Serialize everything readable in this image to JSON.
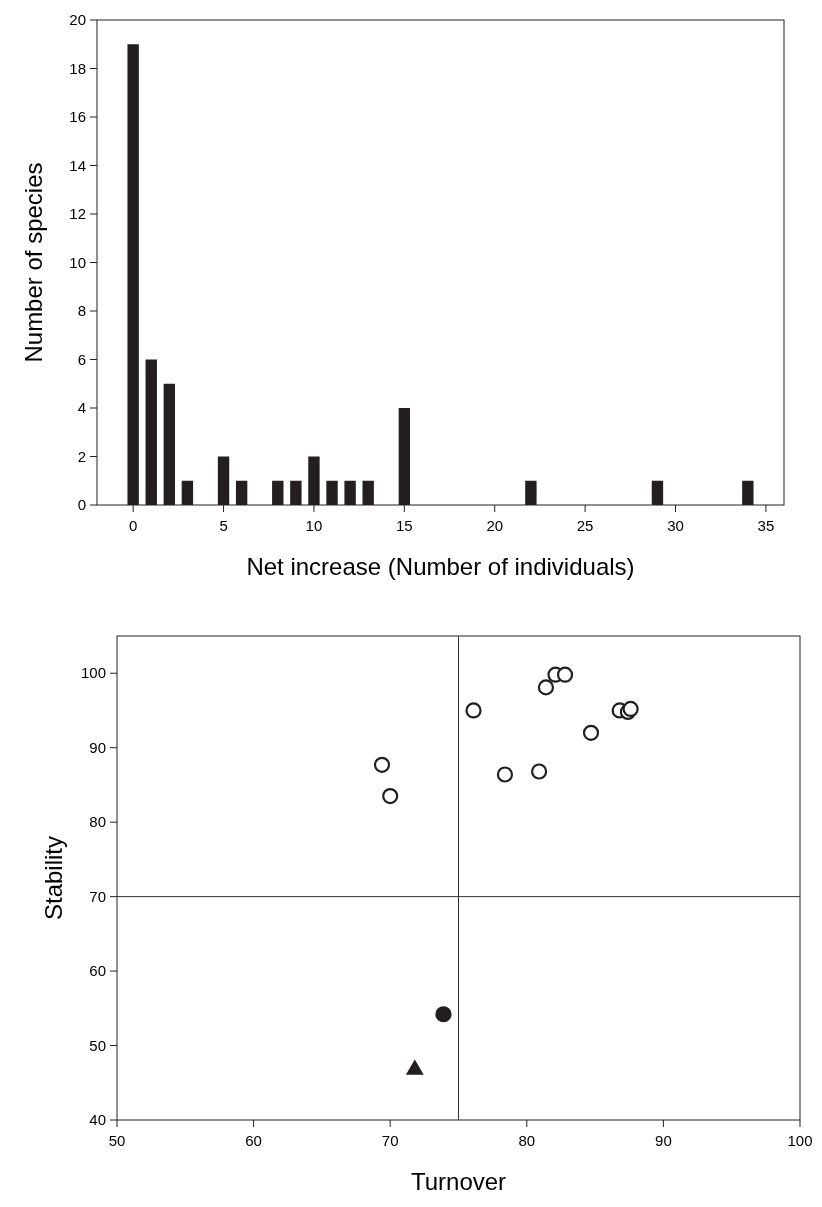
{
  "chart_data": [
    {
      "type": "bar",
      "xlabel": "Net increase (Number of individuals)",
      "ylabel": "Number of species",
      "x": [
        0,
        1,
        2,
        3,
        5,
        6,
        8,
        9,
        10,
        11,
        12,
        13,
        15,
        22,
        29,
        34
      ],
      "values": [
        19,
        6,
        5,
        1,
        2,
        1,
        1,
        1,
        2,
        1,
        1,
        1,
        4,
        1,
        1,
        1
      ],
      "color": "#231f20",
      "xlim": [
        -2,
        36
      ],
      "xticks": [
        0,
        5,
        10,
        15,
        20,
        25,
        30,
        35
      ],
      "ylim": [
        0,
        20
      ],
      "yticks": [
        0,
        2,
        4,
        6,
        8,
        10,
        12,
        14,
        16,
        18,
        20
      ],
      "grid": false
    },
    {
      "type": "scatter",
      "xlabel": "Turnover",
      "ylabel": "Stability",
      "grid": false,
      "xlim": [
        50,
        100
      ],
      "xticks": [
        50,
        60,
        70,
        80,
        90,
        100
      ],
      "ylim": [
        40,
        105
      ],
      "yticks": [
        40,
        50,
        60,
        70,
        80,
        90,
        100
      ],
      "series": [
        {
          "color": "#ffffff",
          "marker": "circle",
          "x": [
            69.4,
            70.0,
            76.1,
            78.4,
            80.9,
            81.4,
            82.1,
            82.8,
            84.7,
            86.8,
            87.4,
            87.6
          ],
          "values": [
            87.7,
            83.5,
            95.0,
            86.4,
            86.8,
            98.1,
            99.8,
            99.8,
            92.0,
            95.0,
            94.8,
            95.2
          ]
        },
        {
          "color": "#231f20",
          "marker": "circle",
          "x": [
            73.9
          ],
          "values": [
            54.2
          ]
        },
        {
          "color": "#231f20",
          "marker": "triangle",
          "x": [
            71.8
          ],
          "values": [
            46.9
          ]
        }
      ],
      "ref_lines": [
        {
          "axis": "x",
          "value": 75,
          "color": "#333333"
        },
        {
          "axis": "y",
          "value": 70,
          "color": "#333333"
        }
      ]
    }
  ]
}
